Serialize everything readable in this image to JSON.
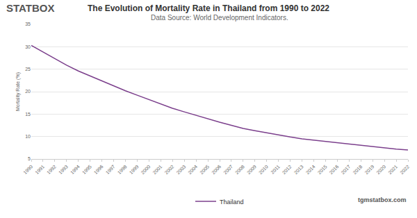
{
  "chart_data": {
    "type": "line",
    "title": "The Evolution of Mortality Rate in Thailand from 1990 to 2022",
    "subtitle": "Data Source: World Development Indicators.",
    "logo": "STATBOX",
    "footer": "tgmstatbox.com",
    "y_label": "Mortality Rate (%)",
    "x": [
      1990,
      1991,
      1992,
      1993,
      1994,
      1995,
      1996,
      1997,
      1998,
      1999,
      2000,
      2001,
      2002,
      2003,
      2004,
      2005,
      2006,
      2007,
      2008,
      2009,
      2010,
      2011,
      2012,
      2013,
      2014,
      2015,
      2016,
      2017,
      2018,
      2019,
      2020,
      2021,
      2022
    ],
    "series": [
      {
        "name": "Thailand",
        "color": "#7b3f8c",
        "values": [
          30.3,
          28.8,
          27.3,
          25.9,
          24.6,
          23.5,
          22.4,
          21.2,
          20.2,
          19.2,
          18.2,
          17.2,
          16.3,
          15.5,
          14.7,
          13.9,
          13.2,
          12.5,
          11.8,
          11.3,
          10.8,
          10.3,
          9.9,
          9.5,
          9.2,
          8.9,
          8.6,
          8.3,
          8.0,
          7.7,
          7.4,
          7.2,
          7.0
        ]
      }
    ],
    "xlim": [
      1990,
      2022
    ],
    "xticks": [
      1990,
      1991,
      1992,
      1993,
      1994,
      1995,
      1996,
      1997,
      1998,
      1999,
      2000,
      2001,
      2002,
      2003,
      2004,
      2005,
      2006,
      2007,
      2008,
      2009,
      2010,
      2011,
      2012,
      2013,
      2014,
      2015,
      2016,
      2017,
      2018,
      2019,
      2020,
      2021,
      2022
    ],
    "ylim": [
      5,
      35
    ],
    "yticks": [
      5,
      10,
      15,
      20,
      25,
      30,
      35
    ],
    "grid": true,
    "legend": "bottom"
  }
}
